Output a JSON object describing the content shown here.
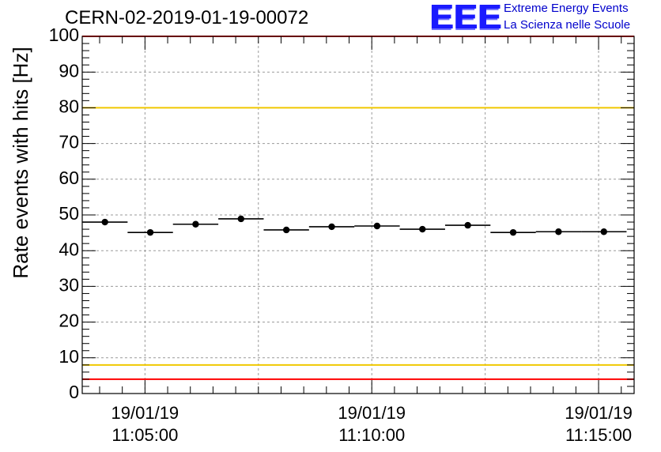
{
  "header": {
    "title": "CERN-02-2019-01-19-00072",
    "logo_mark": "EEE",
    "logo_line1": "Extreme Energy Events",
    "logo_line2": "La Scienza nelle Scuole"
  },
  "chart_data": {
    "type": "scatter",
    "ylabel": "Rate events with hits [Hz]",
    "ylim": [
      0,
      100
    ],
    "yticks": [
      0,
      10,
      20,
      30,
      40,
      50,
      60,
      70,
      80,
      90,
      100
    ],
    "xlim": [
      "11:03:37",
      "11:15:47"
    ],
    "xticks": [
      {
        "date": "19/01/19",
        "time": "11:05:00"
      },
      {
        "date": "19/01/19",
        "time": "11:10:00"
      },
      {
        "date": "19/01/19",
        "time": "11:15:00"
      }
    ],
    "grid": true,
    "series": [
      {
        "points": [
          {
            "x": "11:04:07",
            "y": 48.0
          },
          {
            "x": "11:05:07",
            "y": 45.1
          },
          {
            "x": "11:06:07",
            "y": 47.4
          },
          {
            "x": "11:07:07",
            "y": 48.9
          },
          {
            "x": "11:08:07",
            "y": 45.8
          },
          {
            "x": "11:09:07",
            "y": 46.7
          },
          {
            "x": "11:10:07",
            "y": 46.9
          },
          {
            "x": "11:11:07",
            "y": 46.0
          },
          {
            "x": "11:12:07",
            "y": 47.1
          },
          {
            "x": "11:13:07",
            "y": 45.1
          },
          {
            "x": "11:14:07",
            "y": 45.3
          },
          {
            "x": "11:15:07",
            "y": 45.3
          }
        ],
        "bin_halfwidth_seconds": 30,
        "color": "#000000"
      }
    ],
    "reference_lines": [
      {
        "y": 80,
        "color": "#f0c800"
      },
      {
        "y": 8,
        "color": "#f0c800"
      },
      {
        "y": 100,
        "color": "#ff0000"
      },
      {
        "y": 4,
        "color": "#ff0000"
      }
    ]
  }
}
